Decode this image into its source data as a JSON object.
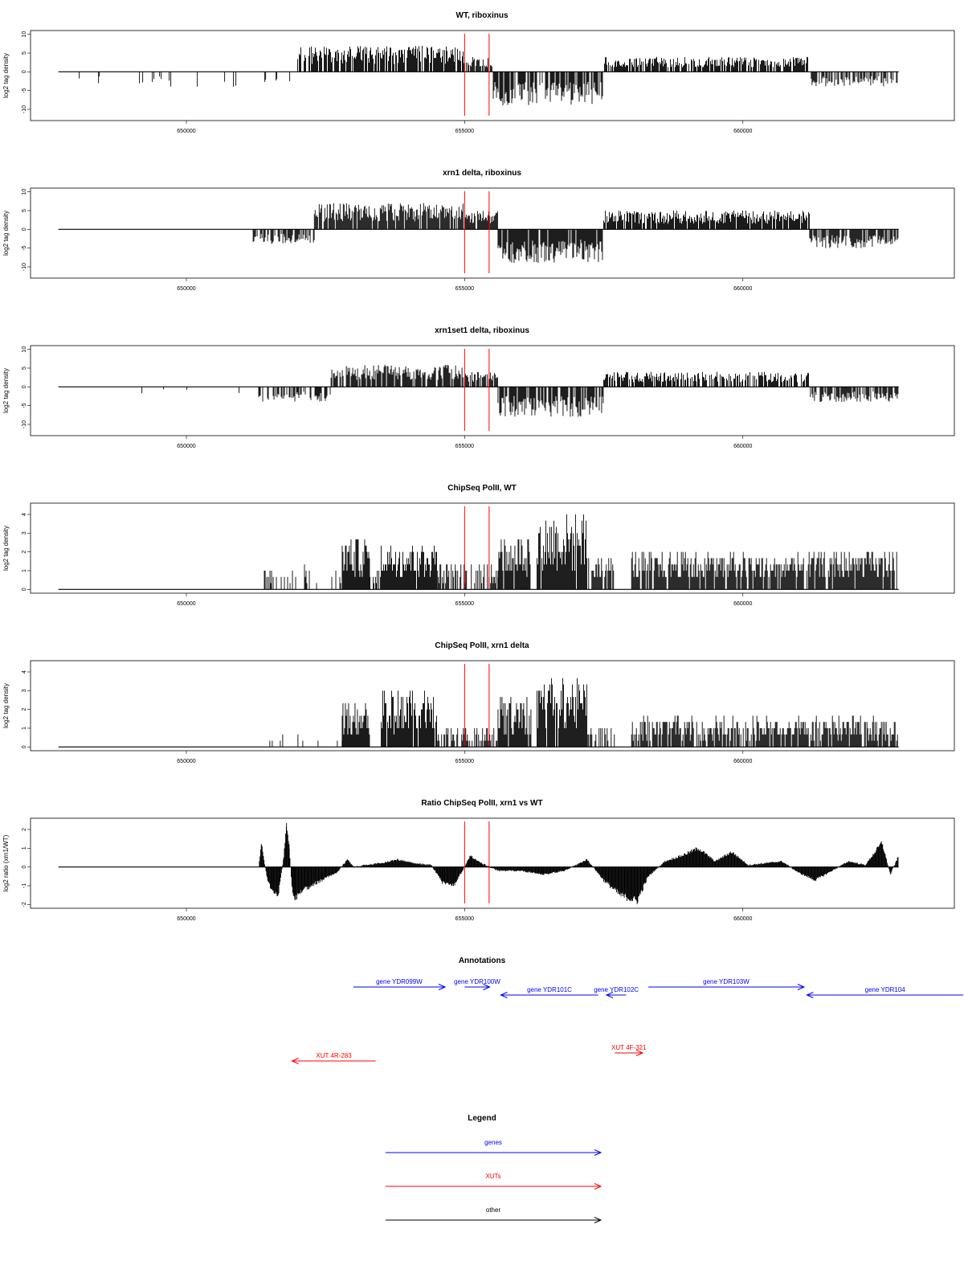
{
  "colors": {
    "gene": "#0000ff",
    "xut": "#ff0000",
    "other": "#000000",
    "marker": "#ff0000",
    "bars": "#000000"
  },
  "x_axis": {
    "ticks": [
      650000,
      655000,
      660000
    ],
    "tick_labels": [
      "650000",
      "655000",
      "660000"
    ]
  },
  "chart_data": [
    {
      "type": "bar",
      "title": "WT, riboxinus",
      "ylabel": "log2 tag density",
      "ylim": [
        -13,
        11
      ],
      "yticks": [
        10,
        5,
        0,
        -5,
        -10
      ],
      "ytick_labels": [
        "10",
        "5",
        "0",
        "-5",
        "-10"
      ],
      "xlim": [
        647200,
        663800
      ],
      "markers": [
        655000,
        655440
      ],
      "signed": true,
      "segments": [
        {
          "from": 647700,
          "to": 652000,
          "y": -4,
          "density": 0.05
        },
        {
          "from": 652000,
          "to": 655000,
          "y": 7,
          "density": 0.8
        },
        {
          "from": 655000,
          "to": 655500,
          "y": 4,
          "density": 0.8
        },
        {
          "from": 655500,
          "to": 657500,
          "y": -9,
          "density": 0.8
        },
        {
          "from": 657500,
          "to": 661200,
          "y": 4,
          "density": 0.8
        },
        {
          "from": 661200,
          "to": 662800,
          "y": -4,
          "density": 0.6
        }
      ]
    },
    {
      "type": "bar",
      "title": "xrn1 delta, riboxinus",
      "ylabel": "log2 tag density",
      "ylim": [
        -13,
        11
      ],
      "yticks": [
        10,
        5,
        0,
        -5,
        -10
      ],
      "ytick_labels": [
        "10",
        "5",
        "0",
        "-5",
        "-10"
      ],
      "xlim": [
        647200,
        663800
      ],
      "markers": [
        655000,
        655440
      ],
      "signed": true,
      "segments": [
        {
          "from": 651200,
          "to": 652300,
          "y": -4,
          "density": 0.7
        },
        {
          "from": 652300,
          "to": 655000,
          "y": 7,
          "density": 0.9
        },
        {
          "from": 655000,
          "to": 655600,
          "y": 5,
          "density": 0.9
        },
        {
          "from": 655600,
          "to": 657500,
          "y": -9,
          "density": 0.9
        },
        {
          "from": 657500,
          "to": 661200,
          "y": 5,
          "density": 0.9
        },
        {
          "from": 661200,
          "to": 662800,
          "y": -5,
          "density": 0.8
        }
      ]
    },
    {
      "type": "bar",
      "title": "xrn1set1 delta, riboxinus",
      "ylabel": "log2 tag density",
      "ylim": [
        -13,
        11
      ],
      "yticks": [
        10,
        5,
        0,
        -5,
        -10
      ],
      "ytick_labels": [
        "10",
        "5",
        "0",
        "-5",
        "-10"
      ],
      "xlim": [
        647200,
        663800
      ],
      "markers": [
        655000,
        655440
      ],
      "signed": true,
      "segments": [
        {
          "from": 647700,
          "to": 651300,
          "y": -2,
          "density": 0.03
        },
        {
          "from": 651300,
          "to": 652600,
          "y": -4,
          "density": 0.5
        },
        {
          "from": 652600,
          "to": 655000,
          "y": 6,
          "density": 0.8
        },
        {
          "from": 655000,
          "to": 655600,
          "y": 4,
          "density": 0.8
        },
        {
          "from": 655600,
          "to": 657500,
          "y": -8,
          "density": 0.8
        },
        {
          "from": 657500,
          "to": 661200,
          "y": 4,
          "density": 0.7
        },
        {
          "from": 661200,
          "to": 662800,
          "y": -4,
          "density": 0.7
        }
      ]
    },
    {
      "type": "bar",
      "title": "ChipSeq PolII, WT",
      "ylabel": "log2 tag density",
      "ylim": [
        -0.2,
        4.6
      ],
      "yticks": [
        0,
        1,
        2,
        3,
        4
      ],
      "ytick_labels": [
        "0",
        "1",
        "2",
        "3",
        "4"
      ],
      "xlim": [
        647200,
        663800
      ],
      "markers": [
        655000,
        655440
      ],
      "signed": false,
      "segments": [
        {
          "from": 651300,
          "to": 652800,
          "y": 1.2,
          "density": 0.3
        },
        {
          "from": 652800,
          "to": 653300,
          "y": 2.8,
          "density": 0.95
        },
        {
          "from": 653300,
          "to": 653500,
          "y": 1.0,
          "density": 0.4
        },
        {
          "from": 653500,
          "to": 654500,
          "y": 2.6,
          "density": 0.95
        },
        {
          "from": 654500,
          "to": 655600,
          "y": 1.5,
          "density": 0.6
        },
        {
          "from": 655600,
          "to": 656200,
          "y": 3.0,
          "density": 0.95
        },
        {
          "from": 656300,
          "to": 657200,
          "y": 4.0,
          "density": 0.95
        },
        {
          "from": 657200,
          "to": 657700,
          "y": 1.8,
          "density": 0.7
        },
        {
          "from": 658000,
          "to": 662800,
          "y": 2.0,
          "density": 0.85
        }
      ]
    },
    {
      "type": "bar",
      "title": "ChipSeq PolII, xrn1 delta",
      "ylabel": "log2 tag density",
      "ylim": [
        -0.2,
        4.6
      ],
      "yticks": [
        0,
        1,
        2,
        3,
        4
      ],
      "ytick_labels": [
        "0",
        "1",
        "2",
        "3",
        "4"
      ],
      "xlim": [
        647200,
        663800
      ],
      "markers": [
        655000,
        655440
      ],
      "signed": false,
      "segments": [
        {
          "from": 651500,
          "to": 652800,
          "y": 0.6,
          "density": 0.15
        },
        {
          "from": 652800,
          "to": 653300,
          "y": 2.5,
          "density": 0.95
        },
        {
          "from": 653500,
          "to": 654500,
          "y": 3.0,
          "density": 0.95
        },
        {
          "from": 654500,
          "to": 655600,
          "y": 1.0,
          "density": 0.6
        },
        {
          "from": 655600,
          "to": 656200,
          "y": 2.6,
          "density": 0.95
        },
        {
          "from": 656300,
          "to": 657200,
          "y": 3.6,
          "density": 0.95
        },
        {
          "from": 657200,
          "to": 657700,
          "y": 1.2,
          "density": 0.5
        },
        {
          "from": 658000,
          "to": 662800,
          "y": 1.6,
          "density": 0.85
        }
      ]
    },
    {
      "type": "area",
      "title": "Ratio ChipSeq PolII, xrn1 vs WT",
      "ylabel": "log2 ratio (xrn1/WT)",
      "ylim": [
        -2.2,
        2.6
      ],
      "yticks": [
        2,
        1,
        0,
        -1,
        -2
      ],
      "ytick_labels": [
        "2",
        "1",
        "0",
        "-1",
        "-2"
      ],
      "xlim": [
        647200,
        663800
      ],
      "markers": [
        655000,
        655440
      ],
      "signed": true,
      "profile": [
        [
          651300,
          0
        ],
        [
          651350,
          1.2
        ],
        [
          651450,
          -0.6
        ],
        [
          651550,
          -1.3
        ],
        [
          651650,
          -1.5
        ],
        [
          651750,
          0.5
        ],
        [
          651800,
          2.2
        ],
        [
          651850,
          1.0
        ],
        [
          651900,
          -1.2
        ],
        [
          651950,
          -1.7
        ],
        [
          652100,
          -1.2
        ],
        [
          652300,
          -0.9
        ],
        [
          652500,
          -0.6
        ],
        [
          652700,
          -0.3
        ],
        [
          652900,
          0.4
        ],
        [
          653000,
          0.0
        ],
        [
          653200,
          0.1
        ],
        [
          653500,
          0.2
        ],
        [
          653800,
          0.4
        ],
        [
          654100,
          0.2
        ],
        [
          654400,
          0.1
        ],
        [
          654600,
          -0.8
        ],
        [
          654800,
          -1.0
        ],
        [
          655000,
          0.0
        ],
        [
          655100,
          0.6
        ],
        [
          655300,
          0.2
        ],
        [
          655600,
          -0.2
        ],
        [
          656000,
          -0.2
        ],
        [
          656400,
          -0.4
        ],
        [
          656800,
          -0.2
        ],
        [
          657200,
          0.4
        ],
        [
          657500,
          -0.7
        ],
        [
          657800,
          -1.5
        ],
        [
          658100,
          -1.8
        ],
        [
          658300,
          -0.5
        ],
        [
          658600,
          0.3
        ],
        [
          658900,
          0.6
        ],
        [
          659200,
          1.0
        ],
        [
          659500,
          0.3
        ],
        [
          659800,
          0.8
        ],
        [
          660100,
          0.1
        ],
        [
          660400,
          0.2
        ],
        [
          660700,
          0.3
        ],
        [
          661000,
          -0.3
        ],
        [
          661300,
          -0.7
        ],
        [
          661600,
          -0.2
        ],
        [
          661900,
          0.3
        ],
        [
          662200,
          0.1
        ],
        [
          662500,
          1.3
        ],
        [
          662650,
          -0.4
        ],
        [
          662800,
          0.6
        ]
      ]
    }
  ],
  "annotations": {
    "title": "Annotations",
    "genes": [
      {
        "label": "gene YDR099W",
        "from": 653000,
        "to": 654650,
        "dir": "right",
        "row": 1
      },
      {
        "label": "gene YDR100W",
        "from": 655000,
        "to": 655450,
        "dir": "right",
        "row": 1
      },
      {
        "label": "gene YDR101C",
        "from": 655650,
        "to": 657400,
        "dir": "left",
        "row": 2
      },
      {
        "label": "gene YDR102C",
        "from": 657550,
        "to": 657900,
        "dir": "left",
        "row": 2
      },
      {
        "label": "gene YDR103W",
        "from": 658300,
        "to": 661100,
        "dir": "right",
        "row": 1
      },
      {
        "label": "gene YDR104",
        "from": 661150,
        "to": 664200,
        "dir": "left",
        "row": 2
      }
    ],
    "xuts": [
      {
        "label": "XUT 4R-283",
        "from": 651900,
        "to": 653400,
        "dir": "left"
      },
      {
        "label": "XUT 4F-321",
        "from": 657700,
        "to": 658200,
        "dir": "right"
      }
    ]
  },
  "legend": {
    "title": "Legend",
    "items": [
      {
        "label": "genes",
        "color": "#0000ff"
      },
      {
        "label": "XUTs",
        "color": "#ff0000"
      },
      {
        "label": "other",
        "color": "#000000"
      }
    ]
  }
}
